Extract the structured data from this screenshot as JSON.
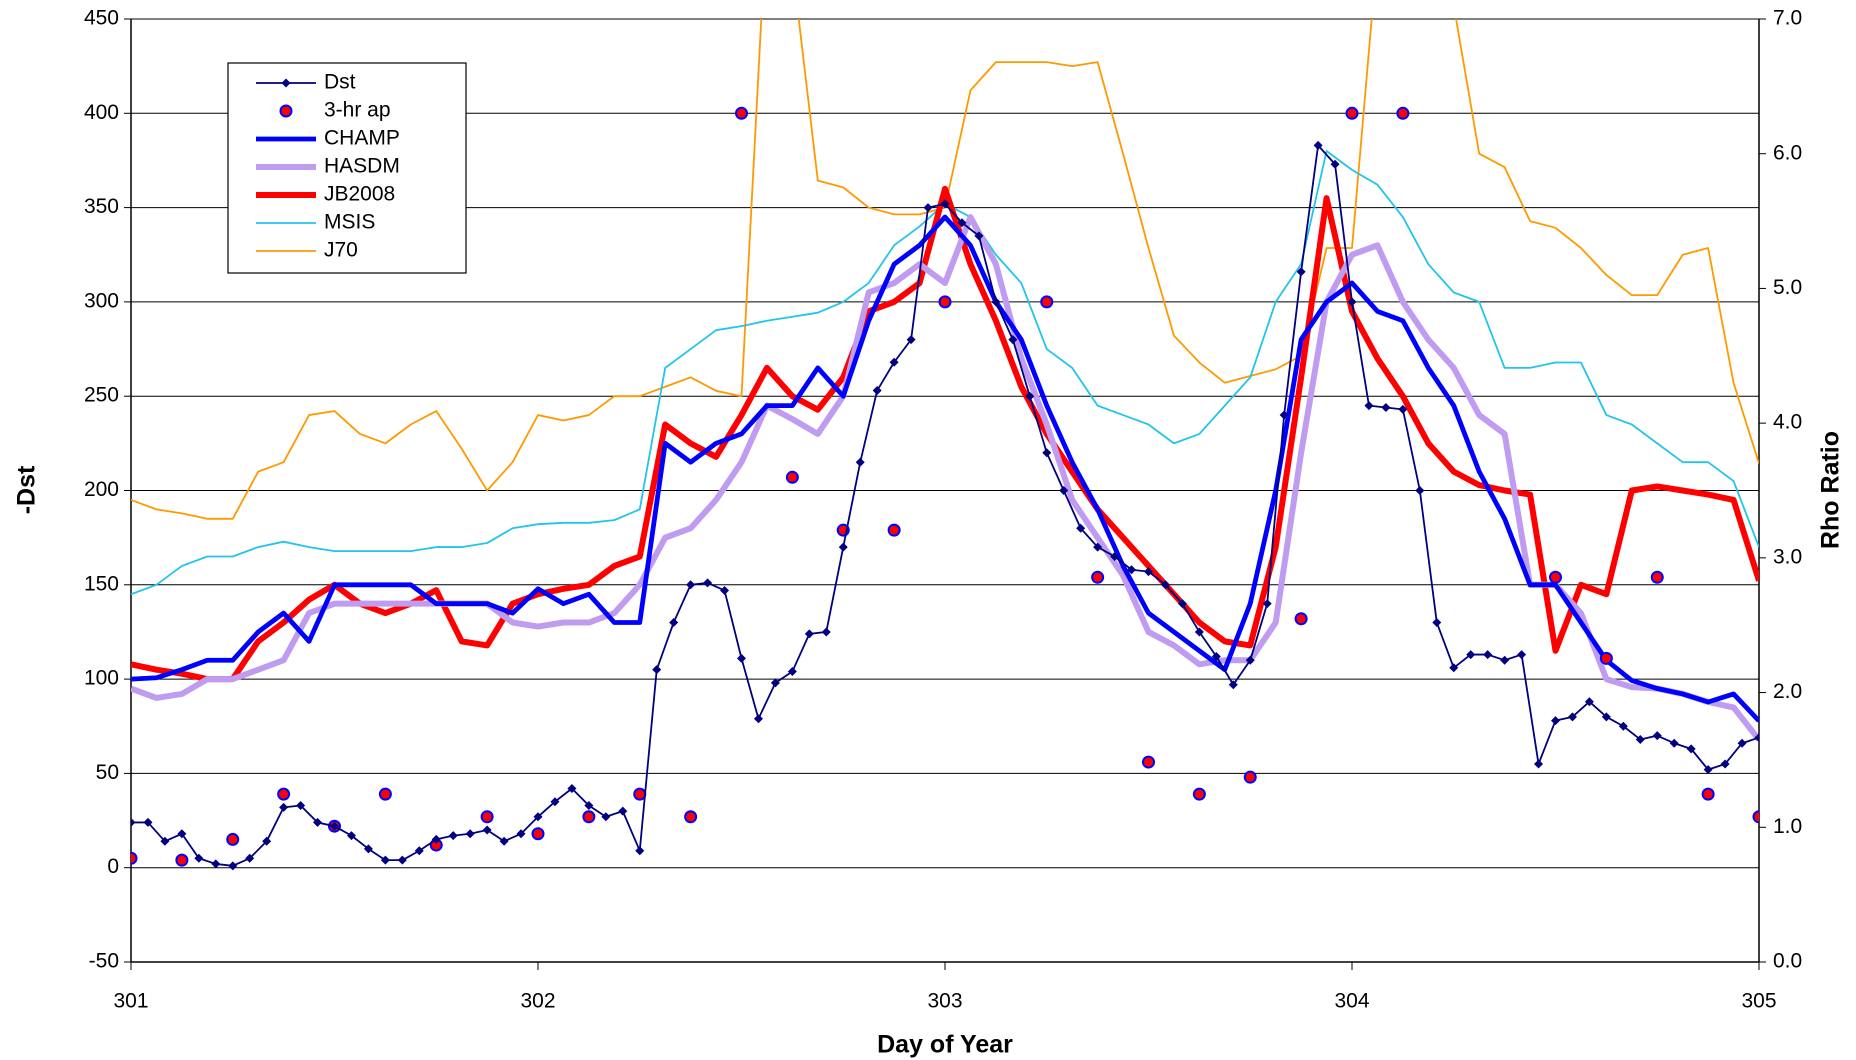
{
  "chart_data": {
    "type": "line",
    "xlabel": "Day of Year",
    "ylabel": "-Dst",
    "y2label": "Rho Ratio",
    "xlim": [
      301,
      305
    ],
    "xticks": [
      301,
      302,
      303,
      304,
      305
    ],
    "ylim": [
      -50,
      450
    ],
    "yticks": [
      -50,
      0,
      50,
      100,
      150,
      200,
      250,
      300,
      350,
      400,
      450
    ],
    "y2lim": [
      0,
      7
    ],
    "y2ticks": [
      {
        "value": 0,
        "label": "0.0"
      },
      {
        "value": 1,
        "label": "1.0"
      },
      {
        "value": 2,
        "label": "2.0"
      },
      {
        "value": 3,
        "label": "3.0"
      },
      {
        "value": 4,
        "label": "4.0"
      },
      {
        "value": 5,
        "label": "5.0"
      },
      {
        "value": 6,
        "label": "6.0"
      },
      {
        "value": 7,
        "label": "7.0"
      }
    ],
    "grid": true,
    "legend": "upper left",
    "x": [
      301,
      301.0625,
      301.125,
      301.1875,
      301.25,
      301.3125,
      301.375,
      301.4375,
      301.5,
      301.5625,
      301.625,
      301.6875,
      301.75,
      301.8125,
      301.875,
      301.9375,
      302,
      302.0625,
      302.125,
      302.1875,
      302.25,
      302.3125,
      302.375,
      302.4375,
      302.5,
      302.5625,
      302.625,
      302.6875,
      302.75,
      302.8125,
      302.875,
      302.9375,
      303,
      303.0625,
      303.125,
      303.1875,
      303.25,
      303.3125,
      303.375,
      303.4375,
      303.5,
      303.5625,
      303.625,
      303.6875,
      303.75,
      303.8125,
      303.875,
      303.9375,
      304,
      304.0625,
      304.125,
      304.1875,
      304.25,
      304.3125,
      304.375,
      304.4375,
      304.5,
      304.5625,
      304.625,
      304.6875,
      304.75,
      304.8125,
      304.875,
      304.9375,
      305
    ],
    "series": [
      {
        "name": "Dst",
        "color": "#000080",
        "linewidth": 1.5,
        "marker": "diamond",
        "axis": "y",
        "x": [
          301,
          301.0417,
          301.0833,
          301.125,
          301.1667,
          301.2083,
          301.25,
          301.2917,
          301.3333,
          301.375,
          301.4167,
          301.4583,
          301.5,
          301.5417,
          301.5833,
          301.625,
          301.6667,
          301.7083,
          301.75,
          301.7917,
          301.8333,
          301.875,
          301.9167,
          301.9583,
          302,
          302.0417,
          302.0833,
          302.125,
          302.1667,
          302.2083,
          302.25,
          302.2917,
          302.3333,
          302.375,
          302.4167,
          302.4583,
          302.5,
          302.5417,
          302.5833,
          302.625,
          302.6667,
          302.7083,
          302.75,
          302.7917,
          302.8333,
          302.875,
          302.9167,
          302.9583,
          303,
          303.0417,
          303.0833,
          303.125,
          303.1667,
          303.2083,
          303.25,
          303.2917,
          303.3333,
          303.375,
          303.4167,
          303.4583,
          303.5,
          303.5417,
          303.5833,
          303.625,
          303.6667,
          303.7083,
          303.75,
          303.7917,
          303.8333,
          303.875,
          303.9167,
          303.9583,
          304,
          304.0417,
          304.0833,
          304.125,
          304.1667,
          304.2083,
          304.25,
          304.2917,
          304.3333,
          304.375,
          304.4167,
          304.4583,
          304.5,
          304.5417,
          304.5833,
          304.625,
          304.6667,
          304.7083,
          304.75,
          304.7917,
          304.8333,
          304.875,
          304.9167,
          304.9583,
          305
        ],
        "values": [
          24,
          24,
          14,
          18,
          5,
          2,
          1,
          5,
          14,
          32,
          33,
          24,
          22,
          17,
          10,
          4,
          4,
          9,
          15,
          17,
          18,
          20,
          14,
          18,
          27,
          35,
          42,
          33,
          27,
          30,
          9,
          105,
          130,
          150,
          151,
          147,
          111,
          79,
          98,
          104,
          124,
          125,
          170,
          215,
          253,
          268,
          280,
          350,
          352,
          342,
          335,
          300,
          280,
          250,
          220,
          200,
          180,
          170,
          165,
          158,
          157,
          150,
          140,
          125,
          112,
          97,
          110,
          140,
          240,
          316,
          383,
          373,
          300,
          245,
          244,
          243,
          200,
          130,
          106,
          113,
          113,
          110,
          113,
          55,
          78,
          80,
          88,
          80,
          75,
          68,
          70,
          66,
          63,
          52,
          55,
          66,
          69
        ]
      },
      {
        "name": "3-hr ap",
        "color": "#ff0000",
        "edgecolor": "#0000ff",
        "marker": "circle",
        "linewidth": 0,
        "axis": "y",
        "x": [
          301,
          301.125,
          301.25,
          301.375,
          301.5,
          301.625,
          301.75,
          301.875,
          302,
          302.125,
          302.25,
          302.375,
          302.5,
          302.625,
          302.75,
          302.875,
          303,
          303.125,
          303.25,
          303.375,
          303.5,
          303.625,
          303.75,
          303.875,
          304,
          304.125,
          304.25,
          304.375,
          304.5,
          304.625,
          304.75,
          304.875,
          305
        ],
        "values": [
          5,
          4,
          15,
          39,
          22,
          39,
          12,
          27,
          18,
          27,
          39,
          27,
          400,
          207,
          179,
          179,
          300,
          null,
          300,
          154,
          56,
          39,
          48,
          132,
          400,
          400,
          null,
          null,
          154,
          111,
          154,
          39,
          27
        ]
      },
      {
        "name": "CHAMP",
        "color": "#0000ff",
        "linewidth": 4,
        "axis": "y2",
        "values": [
          2.1,
          2.11,
          2.17,
          2.24,
          2.24,
          2.45,
          2.59,
          2.38,
          2.8,
          2.8,
          2.8,
          2.8,
          2.66,
          2.66,
          2.66,
          2.59,
          2.77,
          2.66,
          2.73,
          2.52,
          2.52,
          3.85,
          3.71,
          3.85,
          3.92,
          4.13,
          4.13,
          4.41,
          4.2,
          4.76,
          5.18,
          5.32,
          5.53,
          5.32,
          4.9,
          4.62,
          4.13,
          3.71,
          3.36,
          2.94,
          2.59,
          2.45,
          2.31,
          2.17,
          2.66,
          3.5,
          4.62,
          4.9,
          5.04,
          4.83,
          4.76,
          4.41,
          4.13,
          3.64,
          3.29,
          2.8,
          2.8,
          2.52,
          2.24,
          2.09,
          2.03,
          1.99,
          1.93,
          1.99,
          1.79
        ]
      },
      {
        "name": "HASDM",
        "color": "#c09cf0",
        "linewidth": 5,
        "axis": "y2",
        "values": [
          2.03,
          1.96,
          1.99,
          2.1,
          2.1,
          2.17,
          2.24,
          2.59,
          2.66,
          2.66,
          2.66,
          2.66,
          2.66,
          2.66,
          2.66,
          2.52,
          2.49,
          2.52,
          2.52,
          2.59,
          2.8,
          3.15,
          3.22,
          3.43,
          3.71,
          4.13,
          4.03,
          3.92,
          4.2,
          4.97,
          5.04,
          5.18,
          5.04,
          5.53,
          5.18,
          4.48,
          3.99,
          3.43,
          3.15,
          2.87,
          2.45,
          2.35,
          2.21,
          2.24,
          2.24,
          2.52,
          3.78,
          4.9,
          5.25,
          5.32,
          4.9,
          4.62,
          4.41,
          4.06,
          3.92,
          2.8,
          2.8,
          2.59,
          2.1,
          2.04,
          2.03,
          1.99,
          1.93,
          1.89,
          1.65
        ]
      },
      {
        "name": "JB2008",
        "color": "#ff0000",
        "linewidth": 5,
        "axis": "y2",
        "values": [
          2.21,
          2.17,
          2.14,
          2.1,
          2.1,
          2.38,
          2.52,
          2.69,
          2.8,
          2.66,
          2.59,
          2.66,
          2.76,
          2.38,
          2.35,
          2.66,
          2.73,
          2.77,
          2.8,
          2.94,
          3.01,
          3.99,
          3.85,
          3.75,
          4.06,
          4.41,
          4.2,
          4.1,
          4.34,
          4.83,
          4.9,
          5.04,
          5.74,
          5.18,
          4.76,
          4.27,
          3.92,
          3.64,
          3.36,
          3.15,
          2.94,
          2.73,
          2.52,
          2.38,
          2.35,
          3.08,
          4.34,
          5.67,
          4.83,
          4.48,
          4.2,
          3.85,
          3.64,
          3.54,
          3.5,
          3.47,
          2.31,
          2.8,
          2.73,
          3.5,
          3.53,
          3.5,
          3.47,
          3.43,
          2.83
        ]
      },
      {
        "name": "MSIS",
        "color": "#22c4ea",
        "linewidth": 1.5,
        "axis": "y2",
        "values": [
          2.73,
          2.8,
          2.94,
          3.01,
          3.01,
          3.08,
          3.12,
          3.08,
          3.05,
          3.05,
          3.05,
          3.05,
          3.08,
          3.08,
          3.11,
          3.22,
          3.25,
          3.26,
          3.26,
          3.28,
          3.36,
          4.41,
          4.55,
          4.69,
          4.72,
          4.76,
          4.79,
          4.82,
          4.9,
          5.04,
          5.32,
          5.46,
          5.63,
          5.53,
          5.25,
          5.04,
          4.55,
          4.41,
          4.13,
          4.06,
          3.99,
          3.85,
          3.92,
          4.13,
          4.34,
          4.9,
          5.18,
          6.02,
          5.88,
          5.77,
          5.53,
          5.18,
          4.97,
          4.9,
          4.41,
          4.41,
          4.45,
          4.45,
          4.06,
          3.99,
          3.85,
          3.71,
          3.71,
          3.57,
          3.08
        ]
      },
      {
        "name": "J70",
        "color": "#ff9900",
        "linewidth": 1.5,
        "axis": "y2",
        "values": [
          3.43,
          3.36,
          3.33,
          3.29,
          3.29,
          3.64,
          3.71,
          4.06,
          4.09,
          3.92,
          3.85,
          3.99,
          4.09,
          3.81,
          3.5,
          3.71,
          4.06,
          4.02,
          4.06,
          4.2,
          4.2,
          4.27,
          4.34,
          4.24,
          4.2,
          7.8,
          7.4,
          5.8,
          5.75,
          5.6,
          5.55,
          5.55,
          5.6,
          6.47,
          6.68,
          6.68,
          6.68,
          6.65,
          6.68,
          6.0,
          5.3,
          4.65,
          4.45,
          4.3,
          4.35,
          4.4,
          4.5,
          5.3,
          5.3,
          7.5,
          7.8,
          7.4,
          7.1,
          6.0,
          5.9,
          5.5,
          5.45,
          5.3,
          5.1,
          4.95,
          4.95,
          5.25,
          5.3,
          4.3,
          3.7
        ]
      }
    ]
  }
}
